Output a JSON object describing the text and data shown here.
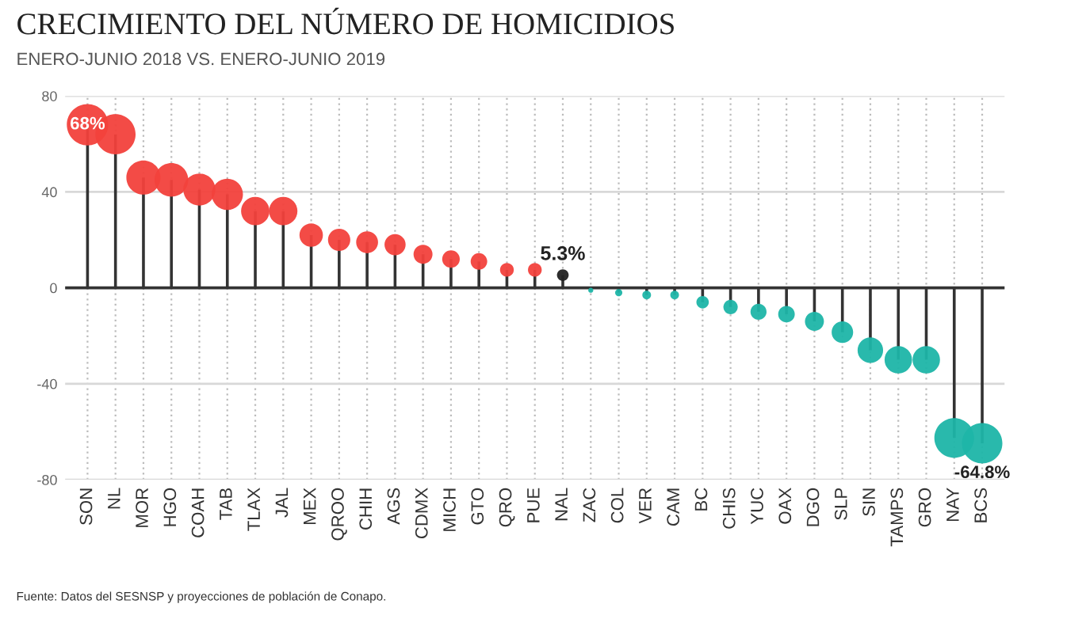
{
  "chart_data": {
    "type": "lollipop",
    "title": "CRECIMIENTO DEL NÚMERO DE HOMICIDIOS",
    "subtitle": "ENERO-JUNIO 2018 VS. ENERO-JUNIO 2019",
    "categories": [
      "SON",
      "NL",
      "MOR",
      "HGO",
      "COAH",
      "TAB",
      "TLAX",
      "JAL",
      "MEX",
      "QROO",
      "CHIH",
      "AGS",
      "CDMX",
      "MICH",
      "GTO",
      "QRO",
      "PUE",
      "NAL",
      "ZAC",
      "COL",
      "VER",
      "CAM",
      "BC",
      "CHIS",
      "YUC",
      "OAX",
      "DGO",
      "SLP",
      "SIN",
      "TAMPS",
      "GRO",
      "NAY",
      "BCS"
    ],
    "values": [
      68,
      64,
      46,
      45,
      41,
      39,
      32,
      32,
      22,
      20,
      19,
      18,
      14,
      12,
      11,
      7.5,
      7.5,
      5.3,
      -1,
      -2,
      -3,
      -3,
      -6,
      -8,
      -10,
      -11,
      -14,
      -18.5,
      -26,
      -30,
      -30,
      -62.6,
      -64.8
    ],
    "sizes": [
      1,
      0.94,
      0.68,
      0.66,
      0.6,
      0.57,
      0.47,
      0.47,
      0.32,
      0.29,
      0.28,
      0.26,
      0.21,
      0.18,
      0.16,
      0.11,
      0.11,
      0.08,
      0.015,
      0.03,
      0.044,
      0.044,
      0.09,
      0.12,
      0.15,
      0.16,
      0.21,
      0.27,
      0.38,
      0.44,
      0.44,
      0.92,
      0.95
    ],
    "value_labels": [
      "68%",
      null,
      null,
      null,
      null,
      null,
      null,
      null,
      null,
      null,
      null,
      null,
      null,
      null,
      null,
      null,
      null,
      "5.3%",
      null,
      null,
      null,
      null,
      null,
      null,
      null,
      null,
      null,
      null,
      null,
      null,
      null,
      null,
      "-64.8%"
    ],
    "colors": [
      "#f2413c",
      "#f2413c",
      "#f2413c",
      "#f2413c",
      "#f2413c",
      "#f2413c",
      "#f2413c",
      "#f2413c",
      "#f2413c",
      "#f2413c",
      "#f2413c",
      "#f2413c",
      "#f2413c",
      "#f2413c",
      "#f2413c",
      "#f2413c",
      "#f2413c",
      "#222222",
      "#1db5a8",
      "#1db5a8",
      "#1db5a8",
      "#1db5a8",
      "#1db5a8",
      "#1db5a8",
      "#1db5a8",
      "#1db5a8",
      "#1db5a8",
      "#1db5a8",
      "#1db5a8",
      "#1db5a8",
      "#1db5a8",
      "#1db5a8",
      "#1db5a8"
    ],
    "ylim": [
      -80,
      80
    ],
    "yticks": [
      -80,
      -40,
      0,
      40,
      80
    ],
    "grid": true,
    "marker": "circle",
    "annotations": [
      "Fuente: Datos del SESNSP y proyecciones de población de Conapo."
    ]
  }
}
